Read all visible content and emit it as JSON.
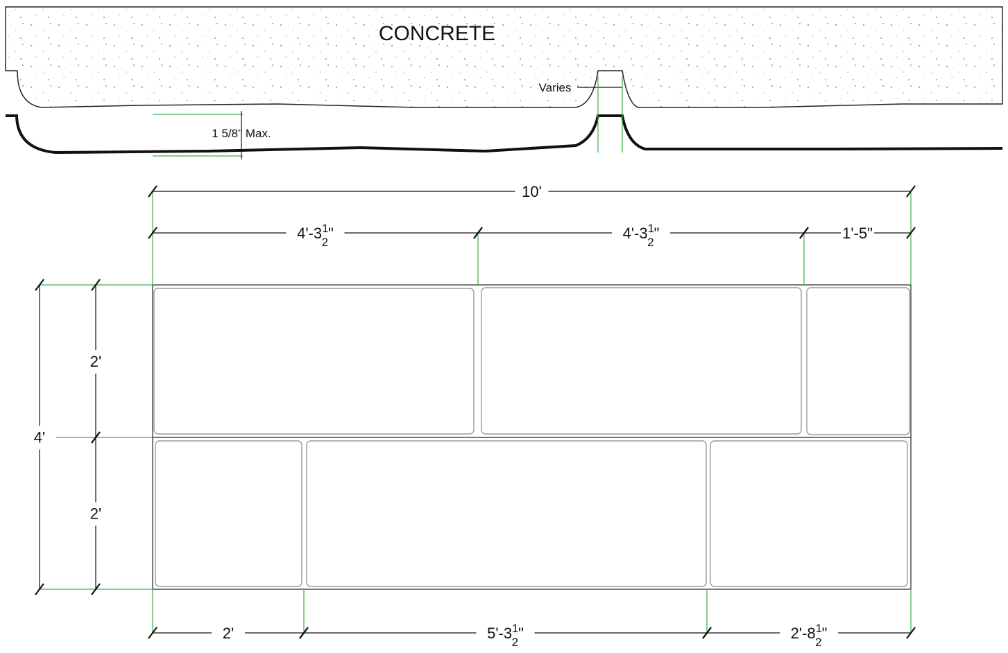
{
  "section": {
    "material": "CONCRETE",
    "varies": "Varies",
    "depth": "1 5/8\" Max."
  },
  "plan": {
    "overall": {
      "whole": "10'"
    },
    "top_dims": [
      {
        "whole": "4'-3",
        "num": "1",
        "den": "2",
        "unit": "\""
      },
      {
        "whole": "4'-3",
        "num": "1",
        "den": "2",
        "unit": "\""
      },
      {
        "whole": "1'-5\""
      }
    ],
    "bottom_dims": [
      {
        "whole": "2'"
      },
      {
        "whole": "5'-3",
        "num": "1",
        "den": "2",
        "unit": "\""
      },
      {
        "whole": "2'-8",
        "num": "1",
        "den": "2",
        "unit": "\""
      }
    ],
    "height": {
      "whole": "4'"
    },
    "rows": [
      {
        "whole": "2'"
      },
      {
        "whole": "2'"
      }
    ]
  }
}
